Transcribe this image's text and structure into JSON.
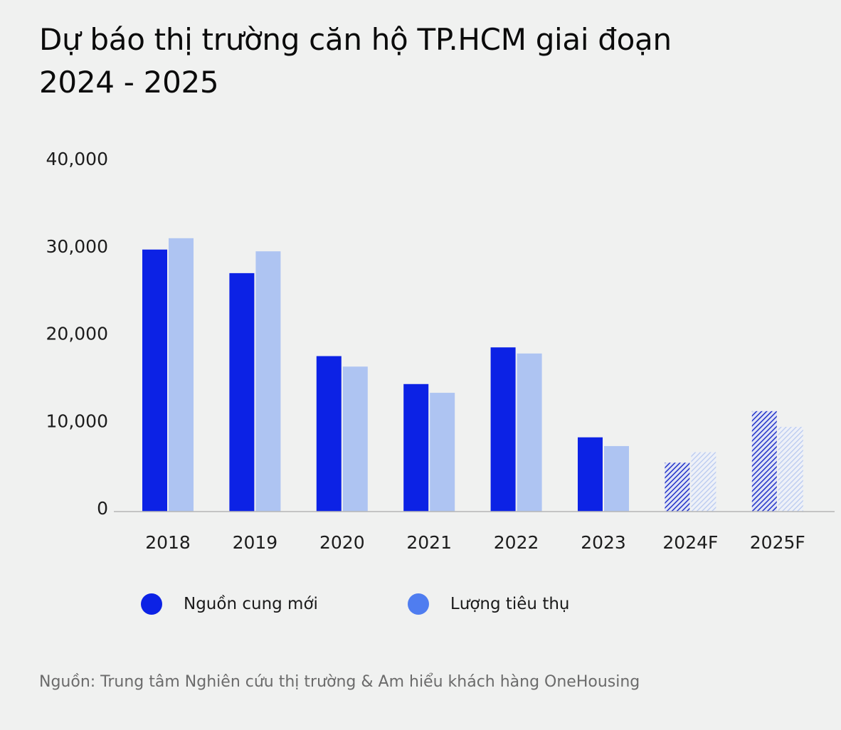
{
  "chart_data": {
    "type": "bar",
    "title": "Dự báo thị trường căn hộ TP.HCM giai đoạn 2024 - 2025",
    "categories": [
      "2018",
      "2019",
      "2020",
      "2021",
      "2022",
      "2023",
      "2024F",
      "2025F"
    ],
    "forecast_categories": [
      "2024F",
      "2025F"
    ],
    "series": [
      {
        "name": "Nguồn cung mới",
        "color": "#0c22e5",
        "values": [
          30000,
          27300,
          17800,
          14600,
          18800,
          8500,
          5600,
          11500
        ]
      },
      {
        "name": "Lượng tiêu thụ",
        "color": "#aec4f2",
        "values": [
          31300,
          29800,
          16600,
          13600,
          18100,
          7500,
          6800,
          9700
        ]
      }
    ],
    "y_ticks": [
      "0",
      "10,000",
      "20,000",
      "30,000",
      "40,000"
    ],
    "ylim": [
      0,
      40000
    ],
    "xlabel": "",
    "ylabel": "",
    "source": "Nguồn: Trung tâm Nghiên cứu thị trường & Am hiểu khách hàng OneHousing"
  },
  "legend": {
    "items": [
      {
        "label": "Nguồn cung mới",
        "color": "#0c22e5"
      },
      {
        "label": "Lượng tiêu thụ",
        "color": "#4f7df0"
      }
    ]
  }
}
